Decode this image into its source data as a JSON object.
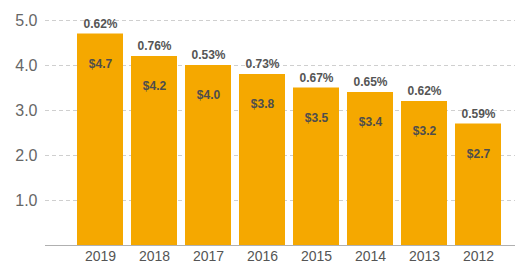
{
  "chart_data": {
    "type": "bar",
    "categories": [
      "2019",
      "2018",
      "2017",
      "2016",
      "2015",
      "2014",
      "2013",
      "2012"
    ],
    "values": [
      4.7,
      4.2,
      4.0,
      3.8,
      3.5,
      3.4,
      3.2,
      2.7
    ],
    "value_labels": [
      "$4.7",
      "$4.2",
      "$4.0",
      "$3.8",
      "$3.5",
      "$3.4",
      "$3.2",
      "$2.7"
    ],
    "annotations": [
      "0.62%",
      "0.76%",
      "0.53%",
      "0.73%",
      "0.67%",
      "0.65%",
      "0.62%",
      "0.59%"
    ],
    "color": "#f5a800",
    "ylim": [
      0,
      5
    ],
    "yticks": [
      {
        "value": 1,
        "label": "1.0"
      },
      {
        "value": 2,
        "label": "2.0"
      },
      {
        "value": 3,
        "label": "3.0"
      },
      {
        "value": 4,
        "label": "4.0"
      },
      {
        "value": 5,
        "label": "5.0"
      }
    ],
    "grid": true,
    "data_labels": true
  }
}
